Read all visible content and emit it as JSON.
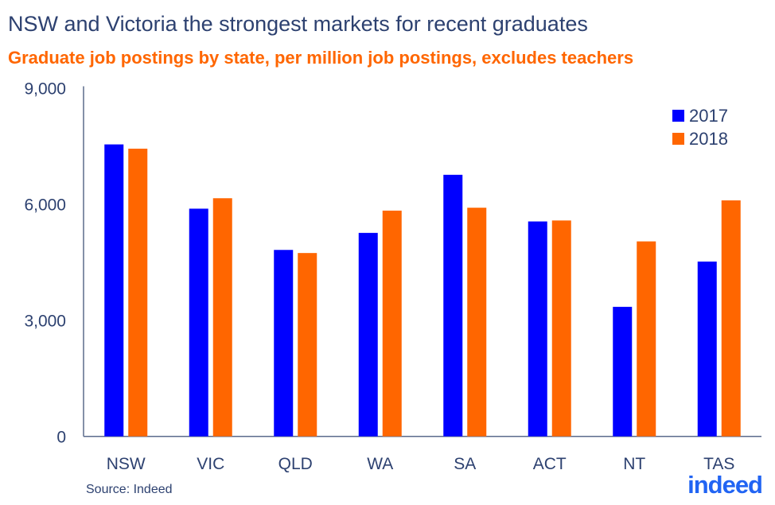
{
  "chart_data": {
    "type": "bar",
    "title": "NSW and Victoria the strongest markets for recent graduates",
    "subtitle": "Graduate job postings by state, per million job postings, excludes teachers",
    "xlabel": "",
    "ylabel": "",
    "categories": [
      "NSW",
      "VIC",
      "QLD",
      "WA",
      "SA",
      "ACT",
      "NT",
      "TAS"
    ],
    "series": [
      {
        "name": "2017",
        "color": "#0000ff",
        "values": [
          7540,
          5880,
          4815,
          5255,
          6755,
          5550,
          3345,
          4515
        ]
      },
      {
        "name": "2018",
        "color": "#ff6600",
        "values": [
          7430,
          6150,
          4735,
          5830,
          5905,
          5575,
          5035,
          6095
        ]
      }
    ],
    "ylim": [
      0,
      9000
    ],
    "yticks": [
      0,
      3000,
      6000,
      9000
    ],
    "ytick_labels": [
      "0",
      "3,000",
      "6,000",
      "9,000"
    ],
    "grid": false,
    "legend": "top-right",
    "source": "Source: Indeed",
    "logo": "indeed"
  }
}
